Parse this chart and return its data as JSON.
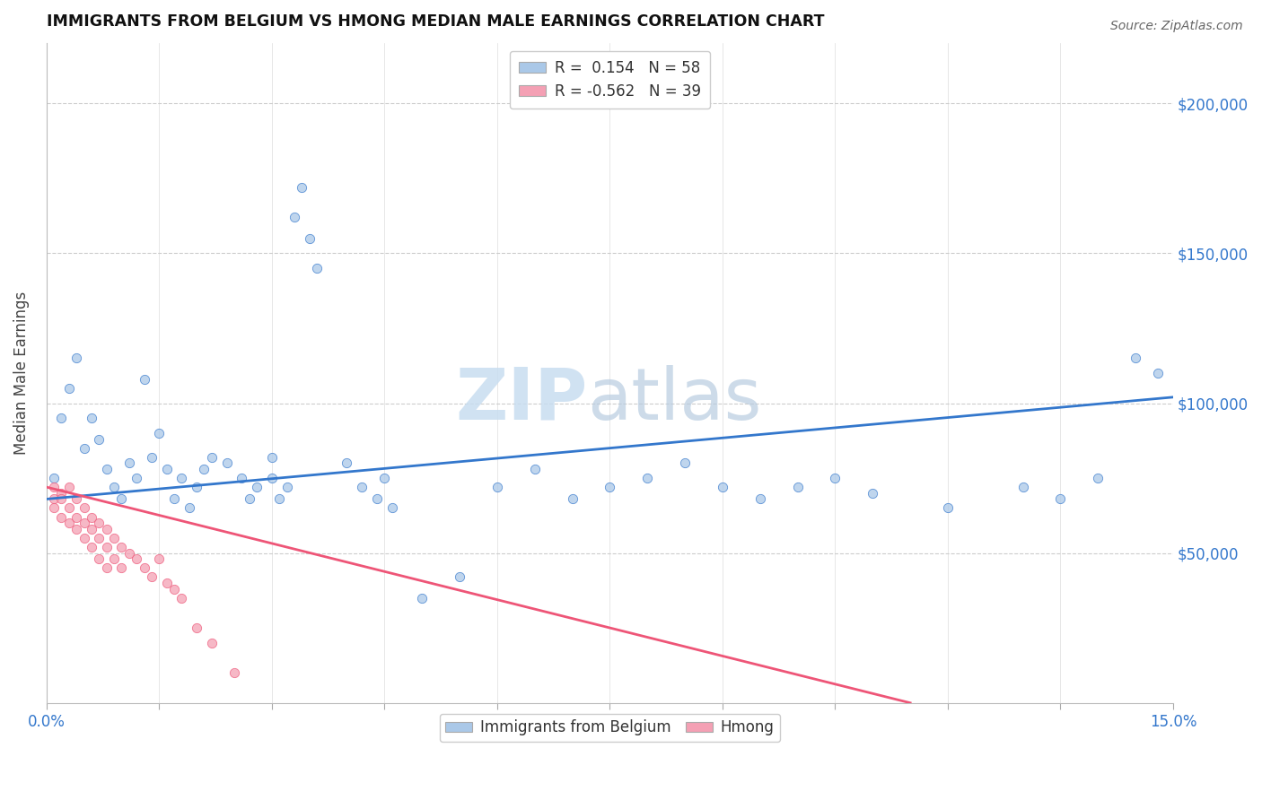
{
  "title": "IMMIGRANTS FROM BELGIUM VS HMONG MEDIAN MALE EARNINGS CORRELATION CHART",
  "source": "Source: ZipAtlas.com",
  "ylabel": "Median Male Earnings",
  "y_tick_values": [
    50000,
    100000,
    150000,
    200000
  ],
  "xlim": [
    0.0,
    0.15
  ],
  "ylim": [
    0,
    220000
  ],
  "belgium_color": "#aac8e8",
  "hmong_color": "#f4a0b4",
  "belgium_line_color": "#3377cc",
  "hmong_line_color": "#ee5577",
  "watermark_zip_color": "#c8ddf0",
  "watermark_atlas_color": "#b8cce0",
  "background_color": "#ffffff",
  "scatter_alpha": 0.75,
  "scatter_size": 55,
  "belgium_scatter": [
    [
      0.001,
      75000
    ],
    [
      0.002,
      95000
    ],
    [
      0.003,
      105000
    ],
    [
      0.004,
      115000
    ],
    [
      0.005,
      85000
    ],
    [
      0.006,
      95000
    ],
    [
      0.007,
      88000
    ],
    [
      0.008,
      78000
    ],
    [
      0.009,
      72000
    ],
    [
      0.01,
      68000
    ],
    [
      0.011,
      80000
    ],
    [
      0.012,
      75000
    ],
    [
      0.013,
      108000
    ],
    [
      0.014,
      82000
    ],
    [
      0.015,
      90000
    ],
    [
      0.016,
      78000
    ],
    [
      0.017,
      68000
    ],
    [
      0.018,
      75000
    ],
    [
      0.019,
      65000
    ],
    [
      0.02,
      72000
    ],
    [
      0.021,
      78000
    ],
    [
      0.022,
      82000
    ],
    [
      0.024,
      80000
    ],
    [
      0.026,
      75000
    ],
    [
      0.027,
      68000
    ],
    [
      0.028,
      72000
    ],
    [
      0.03,
      82000
    ],
    [
      0.03,
      75000
    ],
    [
      0.031,
      68000
    ],
    [
      0.032,
      72000
    ],
    [
      0.033,
      162000
    ],
    [
      0.034,
      172000
    ],
    [
      0.035,
      155000
    ],
    [
      0.036,
      145000
    ],
    [
      0.04,
      80000
    ],
    [
      0.042,
      72000
    ],
    [
      0.044,
      68000
    ],
    [
      0.045,
      75000
    ],
    [
      0.046,
      65000
    ],
    [
      0.05,
      35000
    ],
    [
      0.055,
      42000
    ],
    [
      0.06,
      72000
    ],
    [
      0.065,
      78000
    ],
    [
      0.07,
      68000
    ],
    [
      0.075,
      72000
    ],
    [
      0.08,
      75000
    ],
    [
      0.085,
      80000
    ],
    [
      0.09,
      72000
    ],
    [
      0.095,
      68000
    ],
    [
      0.1,
      72000
    ],
    [
      0.105,
      75000
    ],
    [
      0.11,
      70000
    ],
    [
      0.12,
      65000
    ],
    [
      0.13,
      72000
    ],
    [
      0.135,
      68000
    ],
    [
      0.14,
      75000
    ],
    [
      0.145,
      115000
    ],
    [
      0.148,
      110000
    ]
  ],
  "hmong_scatter": [
    [
      0.001,
      68000
    ],
    [
      0.001,
      72000
    ],
    [
      0.001,
      65000
    ],
    [
      0.002,
      70000
    ],
    [
      0.002,
      62000
    ],
    [
      0.002,
      68000
    ],
    [
      0.003,
      72000
    ],
    [
      0.003,
      65000
    ],
    [
      0.003,
      60000
    ],
    [
      0.004,
      68000
    ],
    [
      0.004,
      62000
    ],
    [
      0.004,
      58000
    ],
    [
      0.005,
      65000
    ],
    [
      0.005,
      60000
    ],
    [
      0.005,
      55000
    ],
    [
      0.006,
      62000
    ],
    [
      0.006,
      58000
    ],
    [
      0.006,
      52000
    ],
    [
      0.007,
      60000
    ],
    [
      0.007,
      55000
    ],
    [
      0.007,
      48000
    ],
    [
      0.008,
      58000
    ],
    [
      0.008,
      52000
    ],
    [
      0.008,
      45000
    ],
    [
      0.009,
      55000
    ],
    [
      0.009,
      48000
    ],
    [
      0.01,
      52000
    ],
    [
      0.01,
      45000
    ],
    [
      0.011,
      50000
    ],
    [
      0.012,
      48000
    ],
    [
      0.013,
      45000
    ],
    [
      0.014,
      42000
    ],
    [
      0.015,
      48000
    ],
    [
      0.016,
      40000
    ],
    [
      0.017,
      38000
    ],
    [
      0.018,
      35000
    ],
    [
      0.02,
      25000
    ],
    [
      0.022,
      20000
    ],
    [
      0.025,
      10000
    ]
  ],
  "belgium_trend_x": [
    0.0,
    0.15
  ],
  "belgium_trend_y": [
    68000,
    102000
  ],
  "hmong_trend_x": [
    0.0,
    0.115
  ],
  "hmong_trend_y": [
    72000,
    0
  ]
}
